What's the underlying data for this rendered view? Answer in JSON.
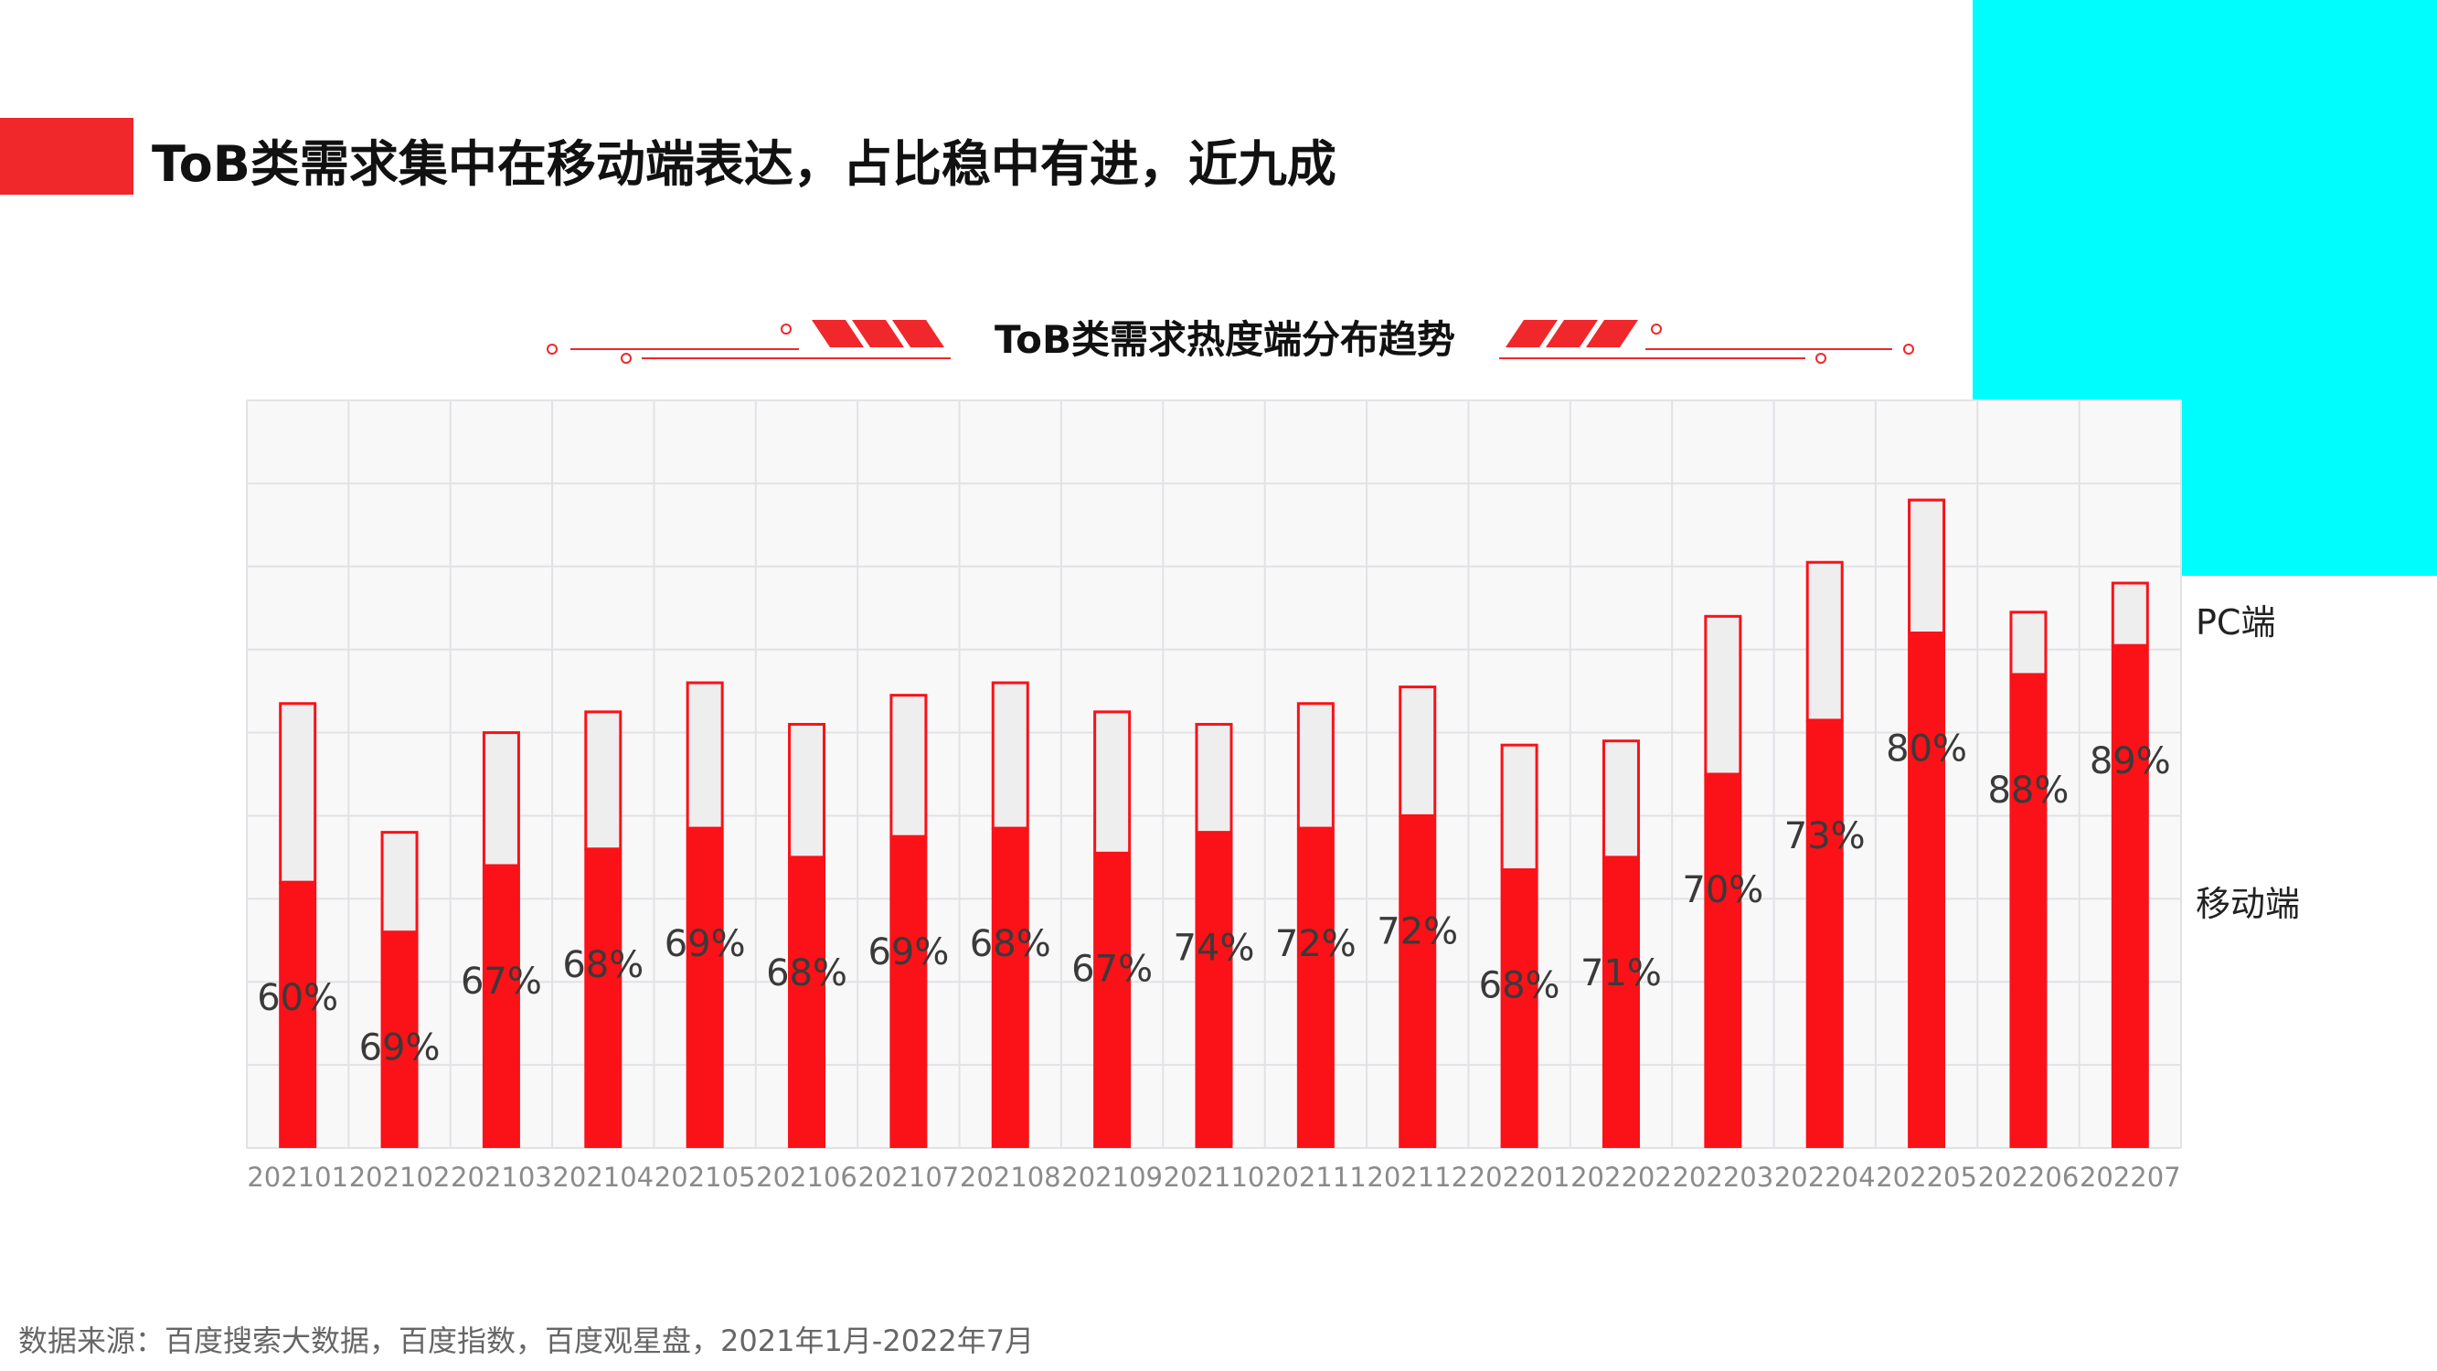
{
  "headline": "ToB类需求集中在移动端表达，占比稳中有进，近九成",
  "source_note": "数据来源：百度搜索大数据，百度指数，百度观星盘，2021年1月-2022年7月",
  "colors": {
    "accent": "#f0272b",
    "bar_mobile": "#fb1118",
    "bar_pc": "#eeeeee",
    "corner": "#00fdfd",
    "grid": "#e2e2e6"
  },
  "chart_data": {
    "type": "bar",
    "title": "ToB类需求热度端分布趋势",
    "stacked": true,
    "categories": [
      "202101",
      "202102",
      "202103",
      "202104",
      "202105",
      "202106",
      "202107",
      "202108",
      "202109",
      "202110",
      "202111",
      "202112",
      "202201",
      "202202",
      "202203",
      "202204",
      "202205",
      "202206",
      "202207"
    ],
    "series": [
      {
        "name": "移动端",
        "values": [
          3.2,
          2.6,
          3.4,
          3.6,
          3.85,
          3.5,
          3.75,
          3.85,
          3.55,
          3.8,
          3.85,
          4.0,
          3.35,
          3.5,
          4.5,
          5.15,
          6.2,
          5.7,
          6.05
        ]
      },
      {
        "name": "PC端",
        "values": [
          2.15,
          1.2,
          1.6,
          1.65,
          1.75,
          1.6,
          1.7,
          1.75,
          1.7,
          1.3,
          1.5,
          1.55,
          1.5,
          1.4,
          1.9,
          1.9,
          1.6,
          0.75,
          0.75
        ]
      }
    ],
    "labels": [
      "60%",
      "69%",
      "67%",
      "68%",
      "69%",
      "68%",
      "69%",
      "68%",
      "67%",
      "74%",
      "72%",
      "72%",
      "68%",
      "71%",
      "70%",
      "73%",
      "80%",
      "88%",
      "89%"
    ],
    "ylim": [
      0,
      9
    ],
    "grid": true
  }
}
